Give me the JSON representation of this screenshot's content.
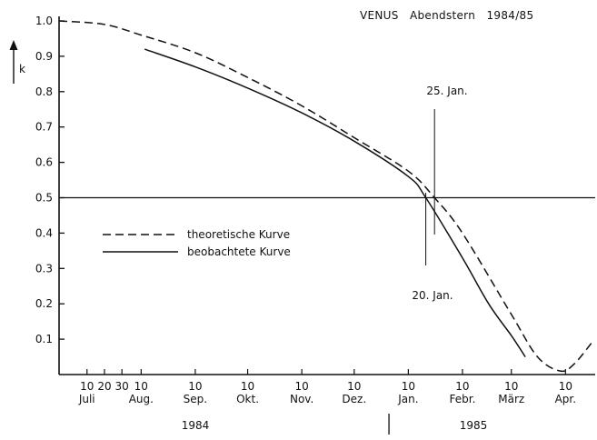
{
  "chart_data": {
    "type": "line",
    "title": "VENUS   Abendstern   1984/85",
    "xlabel": "",
    "ylabel": "k",
    "ylim": [
      0,
      1.0
    ],
    "xlim": [
      "1984-06-24",
      "1985-04-27"
    ],
    "y_ticks": [
      "0.1",
      "0.2",
      "0.3",
      "0.4",
      "0.5",
      "0.6",
      "0.7",
      "0.8",
      "0.9",
      "1.0"
    ],
    "x_day_ticks": [
      {
        "date": "1984-07-10",
        "label": "10"
      },
      {
        "date": "1984-07-20",
        "label": "20"
      },
      {
        "date": "1984-07-30",
        "label": "30"
      },
      {
        "date": "1984-08-10",
        "label": "10"
      },
      {
        "date": "1984-09-10",
        "label": "10"
      },
      {
        "date": "1984-10-10",
        "label": "10"
      },
      {
        "date": "1984-11-10",
        "label": "10"
      },
      {
        "date": "1984-12-10",
        "label": "10"
      },
      {
        "date": "1985-01-10",
        "label": "10"
      },
      {
        "date": "1985-02-10",
        "label": "10"
      },
      {
        "date": "1985-03-10",
        "label": "10"
      },
      {
        "date": "1985-04-10",
        "label": "10"
      }
    ],
    "x_month_labels": [
      {
        "date": "1984-07-10",
        "label": "Juli"
      },
      {
        "date": "1984-08-10",
        "label": "Aug."
      },
      {
        "date": "1984-09-10",
        "label": "Sep."
      },
      {
        "date": "1984-10-10",
        "label": "Okt."
      },
      {
        "date": "1984-11-10",
        "label": "Nov."
      },
      {
        "date": "1984-12-10",
        "label": "Dez."
      },
      {
        "date": "1985-01-10",
        "label": "Jan."
      },
      {
        "date": "1985-02-10",
        "label": "Febr."
      },
      {
        "date": "1985-03-10",
        "label": "März"
      },
      {
        "date": "1985-04-10",
        "label": "Apr."
      }
    ],
    "year_labels": [
      {
        "label": "1984"
      },
      {
        "label": "1985"
      }
    ],
    "year_divider": "1985-01-01",
    "series": [
      {
        "name": "theoretische Kurve",
        "style": "dashed",
        "x": [
          "1984-06-24",
          "1984-07-20",
          "1984-08-10",
          "1984-09-10",
          "1984-10-10",
          "1984-11-10",
          "1984-12-10",
          "1985-01-10",
          "1985-01-25",
          "1985-02-10",
          "1985-03-10",
          "1985-03-25",
          "1985-04-07",
          "1985-04-15",
          "1985-04-25"
        ],
        "y": [
          1.0,
          0.99,
          0.96,
          0.91,
          0.84,
          0.76,
          0.67,
          0.575,
          0.5,
          0.4,
          0.17,
          0.05,
          0.01,
          0.03,
          0.09
        ]
      },
      {
        "name": "beobachtete Kurve",
        "style": "solid",
        "x": [
          "1984-08-12",
          "1984-09-10",
          "1984-10-10",
          "1984-11-10",
          "1984-12-10",
          "1985-01-10",
          "1985-01-20",
          "1985-02-10",
          "1985-02-25",
          "1985-03-10",
          "1985-03-18"
        ],
        "y": [
          0.92,
          0.87,
          0.81,
          0.74,
          0.66,
          0.56,
          0.5,
          0.33,
          0.2,
          0.11,
          0.05
        ]
      }
    ],
    "reference_line": {
      "y": 0.5
    },
    "annotations": [
      {
        "text": "25. Jan.",
        "date": "1985-01-25"
      },
      {
        "text": "20. Jan.",
        "date": "1985-01-20"
      }
    ],
    "legend_position": "left"
  }
}
